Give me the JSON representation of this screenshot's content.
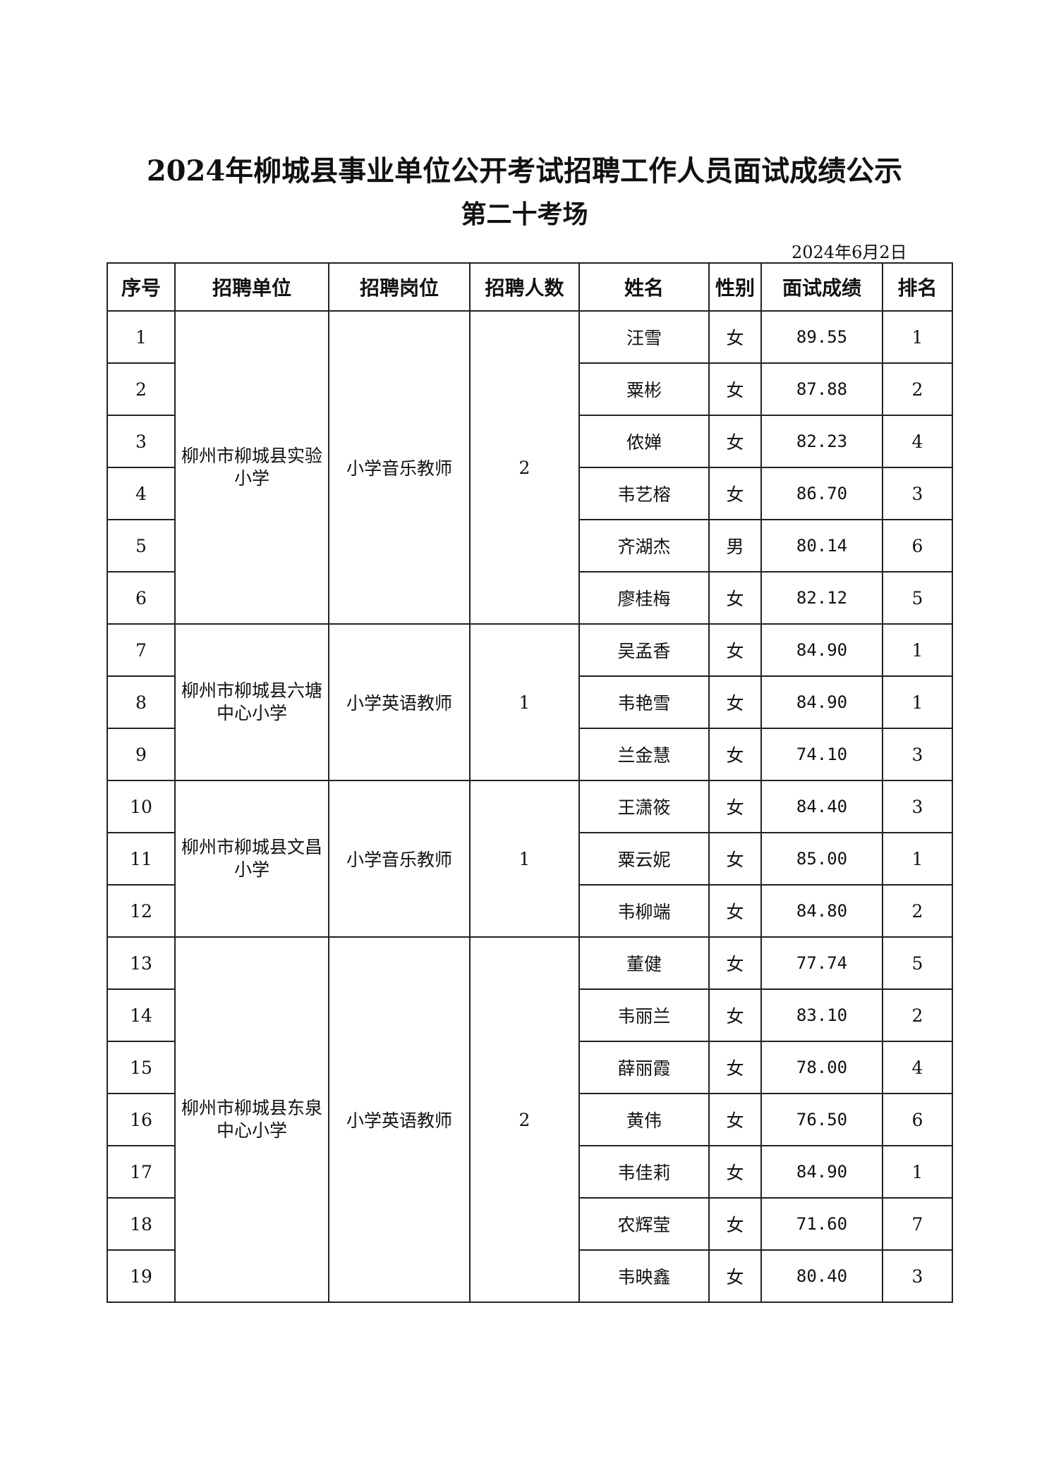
{
  "title": "2024年柳城县事业单位公开考试招聘工作人员面试成绩公示",
  "subtitle": "第二十考场",
  "date": "2024年6月2日",
  "headers": [
    "序号",
    "招聘单位",
    "招聘岗位",
    "招聘人数",
    "姓名",
    "性别",
    "面试成绩",
    "排名"
  ],
  "groups": [
    {
      "unit": "柳州市柳城县实验小学",
      "position": "小学音乐教师",
      "count": "2",
      "rows": [
        {
          "no": "1",
          "name": "汪雪",
          "gender": "女",
          "score": "89.55",
          "rank": "1"
        },
        {
          "no": "2",
          "name": "粟彬",
          "gender": "女",
          "score": "87.88",
          "rank": "2"
        },
        {
          "no": "3",
          "name": "侬婵",
          "gender": "女",
          "score": "82.23",
          "rank": "4"
        },
        {
          "no": "4",
          "name": "韦艺榕",
          "gender": "女",
          "score": "86.70",
          "rank": "3"
        },
        {
          "no": "5",
          "name": "齐湖杰",
          "gender": "男",
          "score": "80.14",
          "rank": "6"
        },
        {
          "no": "6",
          "name": "廖桂梅",
          "gender": "女",
          "score": "82.12",
          "rank": "5"
        }
      ]
    },
    {
      "unit": "柳州市柳城县六塘中心小学",
      "position": "小学英语教师",
      "count": "1",
      "rows": [
        {
          "no": "7",
          "name": "吴孟香",
          "gender": "女",
          "score": "84.90",
          "rank": "1"
        },
        {
          "no": "8",
          "name": "韦艳雪",
          "gender": "女",
          "score": "84.90",
          "rank": "1"
        },
        {
          "no": "9",
          "name": "兰金慧",
          "gender": "女",
          "score": "74.10",
          "rank": "3"
        }
      ]
    },
    {
      "unit": "柳州市柳城县文昌小学",
      "position": "小学音乐教师",
      "count": "1",
      "rows": [
        {
          "no": "10",
          "name": "王潇筱",
          "gender": "女",
          "score": "84.40",
          "rank": "3"
        },
        {
          "no": "11",
          "name": "粟云妮",
          "gender": "女",
          "score": "85.00",
          "rank": "1"
        },
        {
          "no": "12",
          "name": "韦柳端",
          "gender": "女",
          "score": "84.80",
          "rank": "2"
        }
      ]
    },
    {
      "unit": "柳州市柳城县东泉中心小学",
      "position": "小学英语教师",
      "count": "2",
      "rows": [
        {
          "no": "13",
          "name": "董健",
          "gender": "女",
          "score": "77.74",
          "rank": "5"
        },
        {
          "no": "14",
          "name": "韦丽兰",
          "gender": "女",
          "score": "83.10",
          "rank": "2"
        },
        {
          "no": "15",
          "name": "薛丽霞",
          "gender": "女",
          "score": "78.00",
          "rank": "4"
        },
        {
          "no": "16",
          "name": "黄伟",
          "gender": "女",
          "score": "76.50",
          "rank": "6"
        },
        {
          "no": "17",
          "name": "韦佳莉",
          "gender": "女",
          "score": "84.90",
          "rank": "1"
        },
        {
          "no": "18",
          "name": "农辉莹",
          "gender": "女",
          "score": "71.60",
          "rank": "7"
        },
        {
          "no": "19",
          "name": "韦映鑫",
          "gender": "女",
          "score": "80.40",
          "rank": "3"
        }
      ]
    }
  ]
}
